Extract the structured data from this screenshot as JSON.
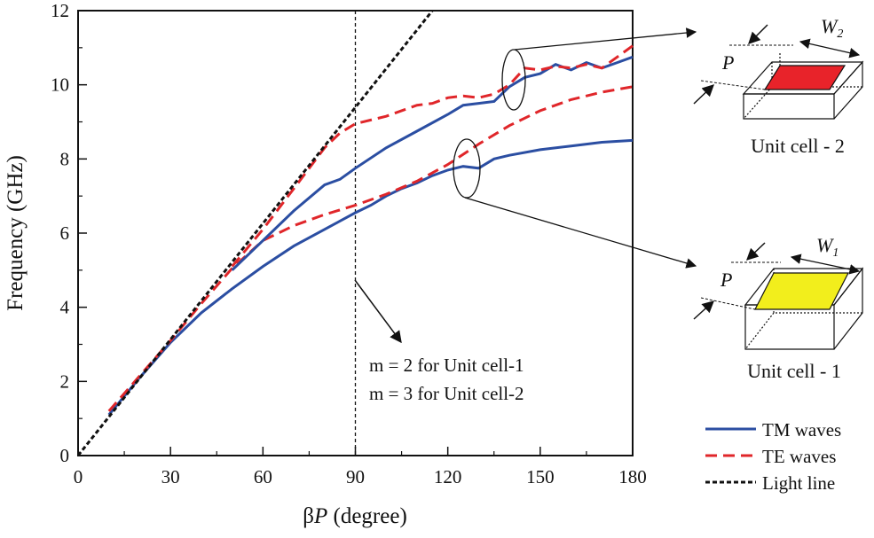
{
  "chart_data": {
    "type": "line",
    "xlabel_prefix": "β",
    "xlabel_var": "P",
    "xlabel_suffix": " (degree)",
    "ylabel": "Frequency (GHz)",
    "xlim": [
      0,
      180
    ],
    "ylim": [
      0,
      12
    ],
    "xticks": [
      0,
      30,
      60,
      90,
      120,
      150,
      180
    ],
    "yticks": [
      0,
      2,
      4,
      6,
      8,
      10,
      12
    ],
    "grid": false,
    "legend_position": "bottom-right, outside plot",
    "series": [
      {
        "name": "TM waves (Unit cell-1)",
        "style": "solid",
        "color": "#2b4ea2",
        "x": [
          10,
          20,
          30,
          40,
          50,
          60,
          70,
          80,
          90,
          95,
          100,
          105,
          110,
          115,
          120,
          125,
          130,
          135,
          140,
          150,
          160,
          170,
          180
        ],
        "y": [
          1.1,
          2.1,
          3.05,
          3.85,
          4.5,
          5.1,
          5.65,
          6.1,
          6.55,
          6.75,
          7.0,
          7.2,
          7.35,
          7.55,
          7.7,
          7.8,
          7.75,
          8.0,
          8.1,
          8.25,
          8.35,
          8.45,
          8.5
        ]
      },
      {
        "name": "TE waves (Unit cell-1)",
        "style": "dashed",
        "color": "#e0262a",
        "x": [
          10,
          20,
          30,
          40,
          50,
          60,
          70,
          80,
          90,
          100,
          110,
          120,
          130,
          140,
          150,
          160,
          170,
          180
        ],
        "y": [
          1.2,
          2.15,
          3.1,
          4.1,
          5.05,
          5.8,
          6.2,
          6.5,
          6.75,
          7.05,
          7.4,
          7.85,
          8.4,
          8.9,
          9.3,
          9.6,
          9.8,
          9.95
        ]
      },
      {
        "name": "TM waves (Unit cell-2)",
        "style": "solid",
        "color": "#2b4ea2",
        "x": [
          50,
          60,
          70,
          80,
          85,
          90,
          100,
          110,
          120,
          125,
          130,
          135,
          140,
          145,
          150,
          155,
          160,
          165,
          170,
          175,
          180
        ],
        "y": [
          5.0,
          5.8,
          6.6,
          7.3,
          7.45,
          7.75,
          8.3,
          8.75,
          9.2,
          9.45,
          9.5,
          9.55,
          9.95,
          10.2,
          10.3,
          10.55,
          10.4,
          10.6,
          10.45,
          10.6,
          10.75
        ]
      },
      {
        "name": "TE waves (Unit cell-2)",
        "style": "dashed",
        "color": "#e0262a",
        "x": [
          50,
          60,
          70,
          80,
          85,
          90,
          100,
          110,
          115,
          120,
          125,
          130,
          135,
          140,
          145,
          150,
          155,
          160,
          165,
          170,
          175,
          180
        ],
        "y": [
          5.1,
          6.1,
          7.2,
          8.3,
          8.7,
          8.95,
          9.15,
          9.45,
          9.5,
          9.65,
          9.7,
          9.65,
          9.75,
          10.0,
          10.45,
          10.4,
          10.5,
          10.45,
          10.55,
          10.45,
          10.75,
          11.05
        ]
      },
      {
        "name": "Light line",
        "style": "dotted",
        "color": "#111111",
        "x": [
          0,
          115
        ],
        "y": [
          0,
          12
        ]
      }
    ],
    "reference_line": {
      "x": 90,
      "style": "dashed",
      "color": "#111111"
    },
    "annotation": {
      "line1": "m = 2 for Unit cell-1",
      "line2": "m = 3 for Unit cell-2"
    },
    "legend": [
      {
        "label": "TM waves",
        "style": "solid",
        "color": "#2b4ea2"
      },
      {
        "label": "TE waves",
        "style": "dashed",
        "color": "#e0262a"
      },
      {
        "label": "Light line",
        "style": "dotted",
        "color": "#111111"
      }
    ],
    "insets": [
      {
        "label": "Unit cell - 2",
        "period": "P",
        "width_var": "W",
        "width_sub": "2",
        "patch_color": "#e8232a"
      },
      {
        "label": "Unit cell - 1",
        "period": "P",
        "width_var": "W",
        "width_sub": "1",
        "patch_color": "#f2ee1c"
      }
    ]
  }
}
